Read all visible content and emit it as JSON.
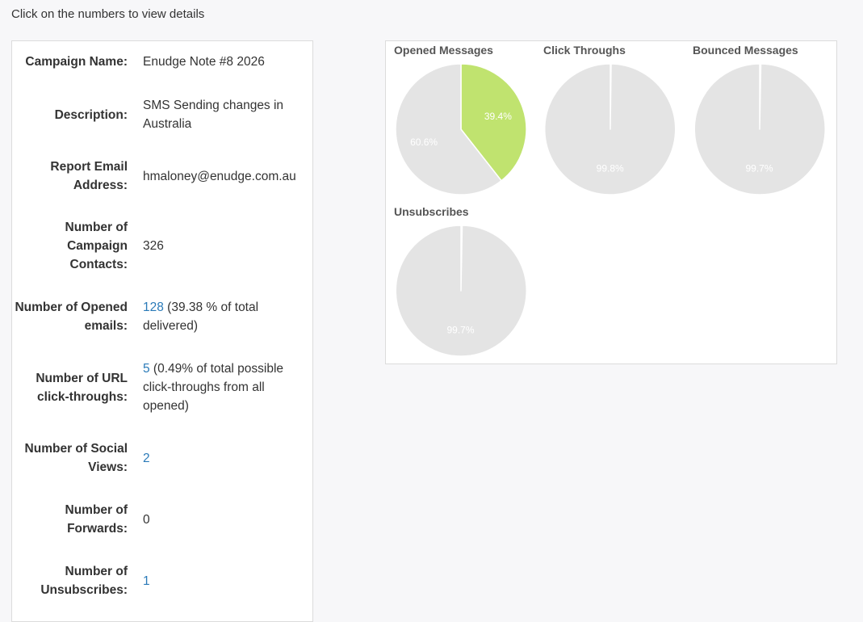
{
  "instruction": "Click on the numbers to view details",
  "details": {
    "campaign_name": {
      "label": "Campaign Name:",
      "value": "Enudge Note #8 2026"
    },
    "description": {
      "label": "Description:",
      "value": "SMS Sending changes in Australia"
    },
    "report_email": {
      "label": "Report Email Address:",
      "value": "hmaloney@enudge.com.au"
    },
    "campaign_contacts": {
      "label": "Number of Campaign Contacts:",
      "value": "326"
    },
    "opened_emails": {
      "label": "Number of Opened emails:",
      "link": "128",
      "suffix": " (39.38 % of total delivered)"
    },
    "url_clicks": {
      "label": "Number of URL click-throughs:",
      "link": "5",
      "suffix": " (0.49% of total possible click-throughs from all opened)"
    },
    "social_views": {
      "label": "Number of Social Views:",
      "link": "2"
    },
    "forwards": {
      "label": "Number of Forwards:",
      "value": "0"
    },
    "unsubscribes": {
      "label": "Number of Unsubscribes:",
      "link": "1"
    }
  },
  "colors": {
    "link": "#2a7ab8",
    "pie_rest": "#e4e4e4",
    "pie_highlight": "#c0e36f",
    "slice_border": "#ffffff"
  },
  "chart_data": [
    {
      "type": "pie",
      "title": "Opened Messages",
      "slices": [
        {
          "value": 39.4,
          "label": "39.4%",
          "color": "#c0e36f"
        },
        {
          "value": 60.6,
          "label": "60.6%",
          "color": "#e4e4e4"
        }
      ]
    },
    {
      "type": "pie",
      "title": "Click Throughs",
      "slices": [
        {
          "value": 0.2,
          "label": "",
          "color": "#e4e4e4"
        },
        {
          "value": 99.8,
          "label": "99.8%",
          "color": "#e4e4e4"
        }
      ]
    },
    {
      "type": "pie",
      "title": "Bounced Messages",
      "slices": [
        {
          "value": 0.3,
          "label": "",
          "color": "#f3c9c9"
        },
        {
          "value": 99.7,
          "label": "99.7%",
          "color": "#e4e4e4"
        }
      ]
    },
    {
      "type": "pie",
      "title": "Unsubscribes",
      "slices": [
        {
          "value": 0.3,
          "label": "",
          "color": "#e4e4e4"
        },
        {
          "value": 99.7,
          "label": "99.7%",
          "color": "#e4e4e4"
        }
      ]
    }
  ]
}
